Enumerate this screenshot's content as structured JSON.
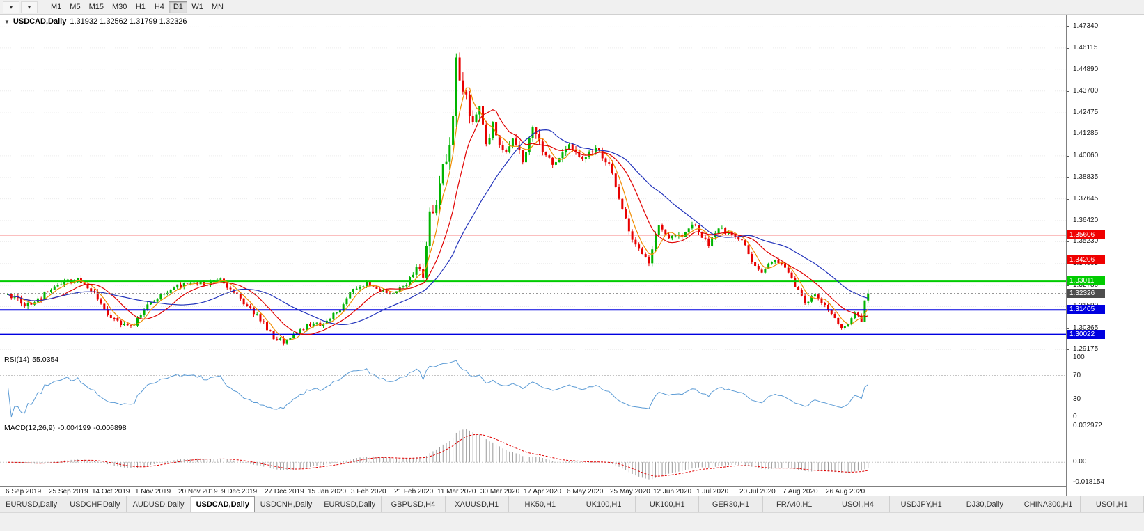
{
  "toolbar": {
    "icons": [
      {
        "name": "charts-menu",
        "glyph": "▾"
      },
      {
        "name": "windows-menu",
        "glyph": "▾"
      }
    ],
    "timeframes": [
      "M1",
      "M5",
      "M15",
      "M30",
      "H1",
      "H4",
      "D1",
      "W1",
      "MN"
    ],
    "active_timeframe": "D1"
  },
  "chart": {
    "title": {
      "collapse_glyph": "▼",
      "symbol": "USDCAD,Daily",
      "ohlc": "1.31932 1.32562 1.31799 1.32326"
    }
  },
  "indicators": {
    "rsi": {
      "label": "RSI(14)",
      "value": "55.0354",
      "line_color": "#5b9bd5",
      "levels": [
        {
          "label": "100",
          "value": 100
        },
        {
          "label": "70",
          "value": 70
        },
        {
          "label": "30",
          "value": 30
        },
        {
          "label": "0",
          "value": 0
        }
      ]
    },
    "macd": {
      "label": "MACD(12,26,9)",
      "value_main": "-0.004199",
      "value_signal": "-0.006898",
      "hist_color": "#9a9a9a",
      "signal_color": "#e00000",
      "max": 0.032972,
      "min": -0.018154,
      "axis_labels": [
        {
          "label": "0.032972",
          "value": 0.032972
        },
        {
          "label": "0.00",
          "value": 0
        },
        {
          "label": "-0.018154",
          "value": -0.018154
        }
      ]
    }
  },
  "chart_data": {
    "type": "candlestick",
    "symbol": "USDCAD",
    "timeframe": "Daily",
    "bars": 260,
    "bars_per_label": 13,
    "noise_seed": 12,
    "last_candle": {
      "o": 1.31932,
      "h": 1.32562,
      "l": 1.31799,
      "c": 1.32326
    },
    "approx_close_keyframes": [
      [
        0,
        1.3235,
        0.004
      ],
      [
        3,
        1.3195,
        0.0038
      ],
      [
        7,
        1.3165,
        0.0038
      ],
      [
        12,
        1.3245,
        0.0036
      ],
      [
        17,
        1.3292,
        0.0034
      ],
      [
        21,
        1.3308,
        0.0034
      ],
      [
        26,
        1.3245,
        0.0038
      ],
      [
        30,
        1.312,
        0.0038
      ],
      [
        34,
        1.3062,
        0.0034
      ],
      [
        38,
        1.3055,
        0.003
      ],
      [
        41,
        1.3155,
        0.0034
      ],
      [
        45,
        1.321,
        0.003
      ],
      [
        50,
        1.3268,
        0.0028
      ],
      [
        55,
        1.3298,
        0.0028
      ],
      [
        60,
        1.3292,
        0.0028
      ],
      [
        64,
        1.3318,
        0.0028
      ],
      [
        68,
        1.3235,
        0.0032
      ],
      [
        72,
        1.316,
        0.0032
      ],
      [
        76,
        1.3085,
        0.0032
      ],
      [
        80,
        1.2988,
        0.003
      ],
      [
        83,
        1.2958,
        0.0028
      ],
      [
        86,
        1.3002,
        0.0028
      ],
      [
        90,
        1.3048,
        0.0028
      ],
      [
        95,
        1.3062,
        0.0028
      ],
      [
        100,
        1.3148,
        0.0028
      ],
      [
        104,
        1.3258,
        0.0028
      ],
      [
        108,
        1.3292,
        0.0026
      ],
      [
        112,
        1.3252,
        0.0026
      ],
      [
        116,
        1.3232,
        0.0026
      ],
      [
        120,
        1.3292,
        0.0034
      ],
      [
        123,
        1.3382,
        0.0042
      ],
      [
        125,
        1.3342,
        0.0055
      ],
      [
        127,
        1.3662,
        0.0075
      ],
      [
        129,
        1.3752,
        0.009
      ],
      [
        131,
        1.3922,
        0.0105
      ],
      [
        133,
        1.4025,
        0.0115
      ],
      [
        134,
        1.4282,
        0.012
      ],
      [
        135,
        1.4602,
        0.0135
      ],
      [
        136,
        1.4482,
        0.015
      ],
      [
        138,
        1.4352,
        0.012
      ],
      [
        140,
        1.4182,
        0.01
      ],
      [
        142,
        1.4262,
        0.009
      ],
      [
        144,
        1.4102,
        0.008
      ],
      [
        146,
        1.4182,
        0.0078
      ],
      [
        149,
        1.4022,
        0.007
      ],
      [
        152,
        1.4112,
        0.0062
      ],
      [
        155,
        1.3992,
        0.006
      ],
      [
        158,
        1.4168,
        0.0068
      ],
      [
        161,
        1.4022,
        0.0058
      ],
      [
        165,
        1.3952,
        0.005
      ],
      [
        169,
        1.4078,
        0.0048
      ],
      [
        173,
        1.3992,
        0.0046
      ],
      [
        177,
        1.4042,
        0.004
      ],
      [
        181,
        1.3952,
        0.004
      ],
      [
        184,
        1.3782,
        0.004
      ],
      [
        187,
        1.3582,
        0.0042
      ],
      [
        190,
        1.3478,
        0.004
      ],
      [
        193,
        1.3402,
        0.004
      ],
      [
        196,
        1.3618,
        0.0046
      ],
      [
        199,
        1.3542,
        0.0038
      ],
      [
        203,
        1.3562,
        0.0036
      ],
      [
        206,
        1.3628,
        0.0034
      ],
      [
        208,
        1.3582,
        0.0032
      ],
      [
        211,
        1.3502,
        0.0032
      ],
      [
        214,
        1.3598,
        0.0032
      ],
      [
        218,
        1.3562,
        0.0028
      ],
      [
        221,
        1.3532,
        0.0028
      ],
      [
        224,
        1.3412,
        0.003
      ],
      [
        227,
        1.3362,
        0.003
      ],
      [
        230,
        1.3422,
        0.0028
      ],
      [
        234,
        1.3382,
        0.0026
      ],
      [
        237,
        1.3282,
        0.0026
      ],
      [
        240,
        1.3182,
        0.0026
      ],
      [
        243,
        1.3222,
        0.0026
      ],
      [
        246,
        1.3162,
        0.0026
      ],
      [
        249,
        1.3092,
        0.0024
      ],
      [
        251,
        1.3038,
        0.0022
      ],
      [
        253,
        1.3062,
        0.0022
      ],
      [
        255,
        1.3128,
        0.0022
      ],
      [
        257,
        1.3078,
        0.0026
      ],
      [
        258,
        1.3193,
        0.0034
      ],
      [
        259,
        1.32326,
        0.003
      ]
    ],
    "price_axis": {
      "top": 1.4795,
      "bottom": 1.2895,
      "ticks": [
        "1.47340",
        "1.46115",
        "1.44890",
        "1.43700",
        "1.42475",
        "1.41285",
        "1.40060",
        "1.38835",
        "1.37645",
        "1.36420",
        "1.35230",
        "1.34005",
        "1.32780",
        "1.31590",
        "1.30365",
        "1.29175"
      ]
    },
    "x_axis_dates": [
      "6 Sep 2019",
      "25 Sep 2019",
      "14 Oct 2019",
      "1 Nov 2019",
      "20 Nov 2019",
      "9 Dec 2019",
      "27 Dec 2019",
      "15 Jan 2020",
      "3 Feb 2020",
      "21 Feb 2020",
      "11 Mar 2020",
      "30 Mar 2020",
      "17 Apr 2020",
      "6 May 2020",
      "25 May 2020",
      "12 Jun 2020",
      "1 Jul 2020",
      "20 Jul 2020",
      "7 Aug 2020",
      "26 Aug 2020"
    ],
    "horizontal_lines": [
      {
        "value": 1.35606,
        "label": "1.35606",
        "color": "#f00000",
        "width": 1
      },
      {
        "value": 1.34206,
        "label": "1.34206",
        "color": "#f00000",
        "width": 1
      },
      {
        "value": 1.33011,
        "label": "1.33011",
        "color": "#00cc00",
        "width": 2
      },
      {
        "value": 1.31405,
        "label": "1.31405",
        "color": "#0000e0",
        "width": 2
      },
      {
        "value": 1.30022,
        "label": "1.30022",
        "color": "#0000e0",
        "width": 2
      }
    ],
    "current_price": {
      "value": 1.32326,
      "label": "1.32326",
      "box_color": "#4d4d4d"
    },
    "candle_up_color": "#00b400",
    "candle_down_color": "#e80000",
    "moving_averages": [
      {
        "period": 5,
        "color": "#f08c00"
      },
      {
        "period": 13,
        "color": "#e00000"
      },
      {
        "period": 30,
        "color": "#2233bb"
      }
    ],
    "rsi_period": 14,
    "macd_params": [
      12,
      26,
      9
    ]
  },
  "bottom_tabs": {
    "active_index": 3,
    "tabs": [
      "EURUSD,Daily",
      "USDCHF,Daily",
      "AUDUSD,Daily",
      "USDCAD,Daily",
      "USDCNH,Daily",
      "EURUSD,Daily",
      "GBPUSD,H4",
      "XAUUSD,H1",
      "HK50,H1",
      "UK100,H1",
      "UK100,H1",
      "GER30,H1",
      "FRA40,H1",
      "USOil,H4",
      "USDJPY,H1",
      "DJ30,Daily",
      "CHINA300,H1",
      "USOil,H1"
    ]
  }
}
